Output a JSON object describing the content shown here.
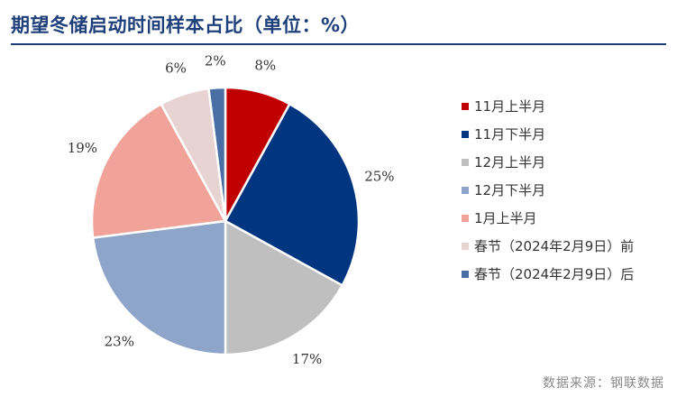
{
  "header": {
    "title": "期望冬储启动时间样本占比（单位：%）"
  },
  "footer": {
    "source": "数据来源：钢联数据"
  },
  "chart_data": {
    "type": "pie",
    "title": "期望冬储启动时间样本占比（单位：%）",
    "unit": "%",
    "start_angle_deg": 0,
    "direction": "clockwise",
    "legend_position": "right",
    "slices": [
      {
        "label": "11月上半月",
        "value": 8,
        "display": "8%",
        "color": "#c00000"
      },
      {
        "label": "11月下半月",
        "value": 25,
        "display": "25%",
        "color": "#003580"
      },
      {
        "label": "12月上半月",
        "value": 17,
        "display": "17%",
        "color": "#bfbfbf"
      },
      {
        "label": "12月下半月",
        "value": 23,
        "display": "23%",
        "color": "#8ea4c8"
      },
      {
        "label": "1月上半月",
        "value": 19,
        "display": "19%",
        "color": "#f1a39a"
      },
      {
        "label": "春节（2024年2月9日）前",
        "value": 6,
        "display": "6%",
        "color": "#e8d3d3"
      },
      {
        "label": "春节（2024年2月9日）后",
        "value": 2,
        "display": "2%",
        "color": "#4a6fa5"
      }
    ]
  }
}
